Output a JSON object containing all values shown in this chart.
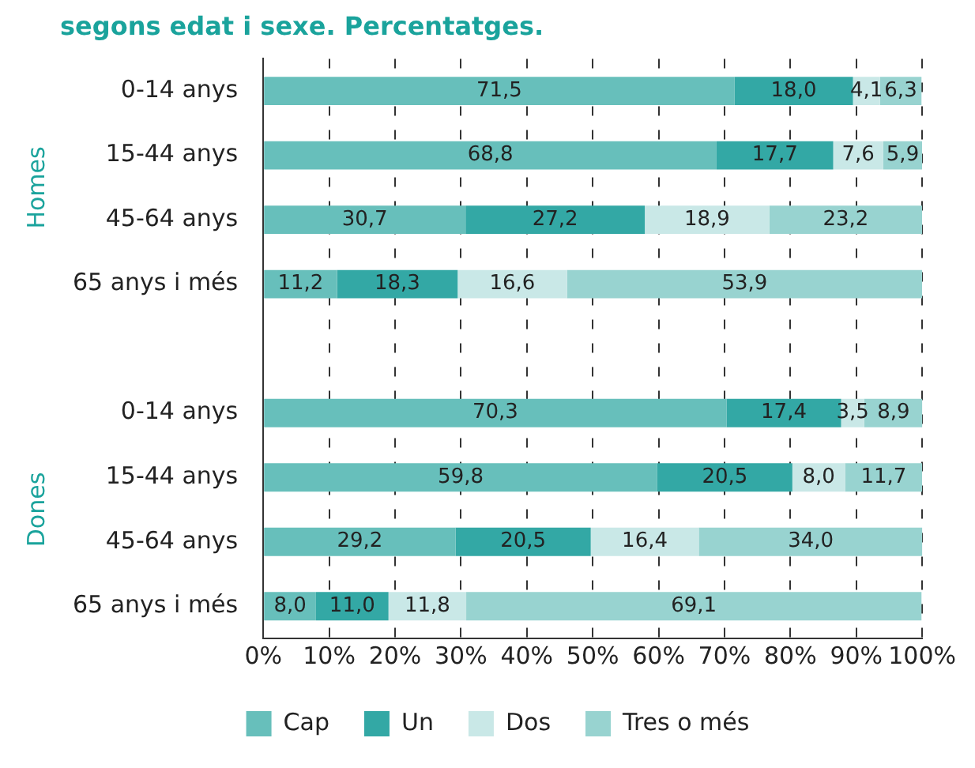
{
  "chart_data": {
    "type": "bar",
    "orientation": "horizontal",
    "stacked": true,
    "title": "segons edat i sexe. Percentatges.",
    "categories": [
      "0-14 anys",
      "15-44 anys",
      "45-64 anys",
      "65 anys i més",
      null,
      "0-14 anys",
      "15-44 anys",
      "45-64 anys",
      "65 anys i més"
    ],
    "series": [
      {
        "name": "Cap",
        "color": "#67bfbb",
        "values": [
          71.5,
          68.8,
          30.7,
          11.2,
          null,
          70.3,
          59.8,
          29.2,
          8.0
        ],
        "value_labels": [
          "71,5",
          "68,8",
          "30,7",
          "11,2",
          null,
          "70,3",
          "59,8",
          "29,2",
          "8,0"
        ]
      },
      {
        "name": "Un",
        "color": "#33a8a5",
        "values": [
          18.0,
          17.7,
          27.2,
          18.3,
          null,
          17.4,
          20.5,
          20.5,
          11.0
        ],
        "value_labels": [
          "18,0",
          "17,7",
          "27,2",
          "18,3",
          null,
          "17,4",
          "20,5",
          "20,5",
          "11,0"
        ]
      },
      {
        "name": "Dos",
        "color": "#c9e8e7",
        "values": [
          4.1,
          7.6,
          18.9,
          16.6,
          null,
          3.5,
          8.0,
          16.4,
          11.8
        ],
        "value_labels": [
          "4,1",
          "7,6",
          "18,9",
          "16,6",
          null,
          "3,5",
          "8,0",
          "16,4",
          "11,8"
        ]
      },
      {
        "name": "Tres o més",
        "color": "#98d3d0",
        "values": [
          6.3,
          5.9,
          23.2,
          53.9,
          null,
          8.9,
          11.7,
          34.0,
          69.1
        ],
        "value_labels": [
          "6,3",
          "5,9",
          "23,2",
          "53,9",
          null,
          "8,9",
          "11,7",
          "34,0",
          "69,1"
        ]
      }
    ],
    "xlim": [
      0,
      100
    ],
    "xticks": [
      {
        "value": 0,
        "label": "0%"
      },
      {
        "value": 10,
        "label": "10%"
      },
      {
        "value": 20,
        "label": "20%"
      },
      {
        "value": 30,
        "label": "30%"
      },
      {
        "value": 40,
        "label": "40%"
      },
      {
        "value": 50,
        "label": "50%"
      },
      {
        "value": 60,
        "label": "60%"
      },
      {
        "value": 70,
        "label": "70%"
      },
      {
        "value": 80,
        "label": "80%"
      },
      {
        "value": 90,
        "label": "90%"
      },
      {
        "value": 100,
        "label": "100%"
      }
    ],
    "grid": "x",
    "legend": "bottom",
    "annotations": [
      "Homes",
      "Dones"
    ]
  }
}
